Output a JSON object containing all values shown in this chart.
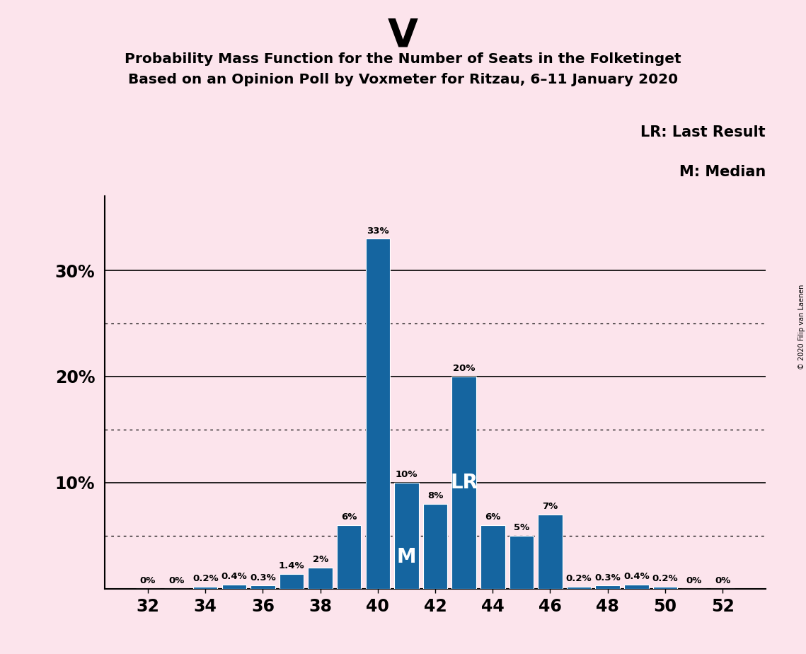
{
  "title_main": "V",
  "title_line1": "Probability Mass Function for the Number of Seats in the Folketinget",
  "title_line2": "Based on an Opinion Poll by Voxmeter for Ritzau, 6–11 January 2020",
  "copyright_text": "© 2020 Filip van Laenen",
  "legend_line1": "LR: Last Result",
  "legend_line2": "M: Median",
  "background_color": "#fce4ec",
  "bar_color": "#1565a0",
  "seats": [
    32,
    33,
    34,
    35,
    36,
    37,
    38,
    39,
    40,
    41,
    42,
    43,
    44,
    45,
    46,
    47,
    48,
    49,
    50,
    51,
    52
  ],
  "probabilities": [
    0.0,
    0.0,
    0.002,
    0.004,
    0.003,
    0.014,
    0.02,
    0.06,
    0.33,
    0.1,
    0.08,
    0.2,
    0.06,
    0.05,
    0.07,
    0.002,
    0.003,
    0.004,
    0.002,
    0.0,
    0.0
  ],
  "labels": [
    "0%",
    "0%",
    "0.2%",
    "0.4%",
    "0.3%",
    "1.4%",
    "2%",
    "6%",
    "33%",
    "10%",
    "8%",
    "20%",
    "6%",
    "5%",
    "7%",
    "0.2%",
    "0.3%",
    "0.4%",
    "0.2%",
    "0%",
    "0%"
  ],
  "median_seat": 41,
  "lr_seat": 43,
  "major_yticks": [
    0.1,
    0.2,
    0.3
  ],
  "major_ytick_labels": [
    "10%",
    "20%",
    "30%"
  ],
  "dotted_yticks": [
    0.05,
    0.15,
    0.25
  ],
  "xlim": [
    30.5,
    53.5
  ],
  "ylim": [
    0,
    0.37
  ],
  "xtick_positions": [
    32,
    34,
    36,
    38,
    40,
    42,
    44,
    46,
    48,
    50,
    52
  ]
}
